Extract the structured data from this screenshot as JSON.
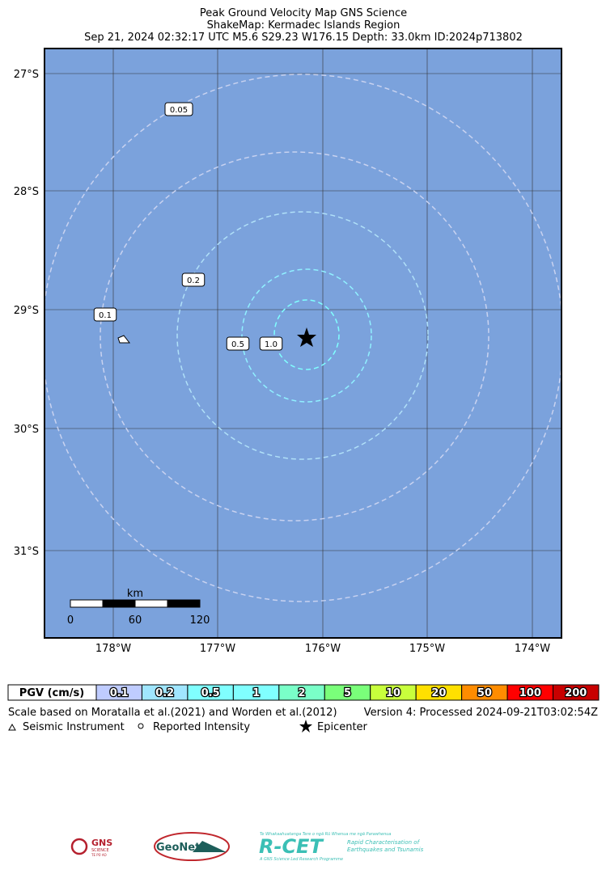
{
  "header": {
    "title": "Peak Ground Velocity Map GNS Science",
    "subtitle": "ShakeMap: Kermadec Islands Region",
    "event": "Sep 21, 2024 02:32:17 UTC M5.6 S29.23 W176.15 Depth: 33.0km ID:2024p713802"
  },
  "map": {
    "lat_labels": [
      "27°S",
      "28°S",
      "29°S",
      "30°S",
      "31°S"
    ],
    "lon_labels": [
      "178°W",
      "177°W",
      "176°W",
      "175°W",
      "174°W"
    ],
    "contour_labels": [
      "0.05",
      "0.2",
      "0.1",
      "0.5",
      "1.0"
    ],
    "scale": {
      "unit": "km",
      "ticks": [
        "0",
        "60",
        "120"
      ]
    }
  },
  "legend": {
    "title": "PGV (cm/s)",
    "bins": [
      {
        "label": "0.1",
        "color": "#bfccff"
      },
      {
        "label": "0.2",
        "color": "#a0e6ff"
      },
      {
        "label": "0.5",
        "color": "#80ffff"
      },
      {
        "label": "1",
        "color": "#80ffff"
      },
      {
        "label": "2",
        "color": "#7affc8"
      },
      {
        "label": "5",
        "color": "#7aff7a"
      },
      {
        "label": "10",
        "color": "#c8ff3c"
      },
      {
        "label": "20",
        "color": "#ffe000"
      },
      {
        "label": "50",
        "color": "#ff8c00"
      },
      {
        "label": "100",
        "color": "#ff0000"
      },
      {
        "label": "200",
        "color": "#c80000"
      }
    ]
  },
  "footer": {
    "note": "Scale based on Moratalla et al.(2021) and Worden et al.(2012)",
    "version": "Version 4: Processed 2024-09-21T03:02:54Z",
    "keys": [
      "Seismic Instrument",
      "Reported Intensity",
      "Epicenter"
    ]
  },
  "logos": {
    "gns": "GNS",
    "gns_sub": "SCIENCE",
    "gns_maori": "TE PŪ AO",
    "geonet": "GeoNet",
    "rcet_top": "Te Whakaahuatanga Tere o ngā Rū Whenua me ngā Parawhenua",
    "rcet": "R-CET",
    "rcet_desc1": "Rapid Characterisation of",
    "rcet_desc2": "Earthquakes and Tsunamis",
    "rcet_bottom": "A GNS Science Led Research Programme"
  }
}
